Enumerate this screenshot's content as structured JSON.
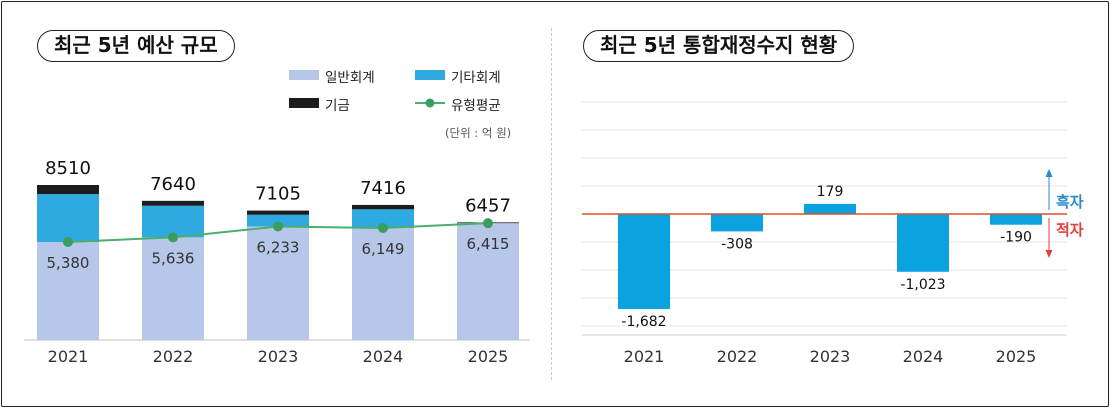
{
  "left_panel": {
    "title": "최근 5년 예산 규모",
    "legend": [
      {
        "key": "general",
        "label": "일반회계",
        "color": "#b7c7ea",
        "shape": "bar"
      },
      {
        "key": "special",
        "label": "기타회계",
        "color": "#2eaae0",
        "shape": "bar"
      },
      {
        "key": "fund",
        "label": "기금",
        "color": "#1c1c1c",
        "shape": "bar"
      },
      {
        "key": "avg",
        "label": "유형평균",
        "color": "#4aaf6e",
        "shape": "line-dot"
      }
    ],
    "unit": "(단위 : 억 원)"
  },
  "right_panel": {
    "title": "최근 5년 통합재정수지 현황",
    "surplus_label": "흑자",
    "deficit_label": "적자",
    "surplus_color": "#2a8bcc",
    "deficit_color": "#e2403a"
  },
  "chart_data": [
    {
      "type": "bar",
      "stacked": true,
      "categories": [
        "2021",
        "2022",
        "2023",
        "2024",
        "2025"
      ],
      "totals": [
        8510,
        7640,
        7105,
        7416,
        6457
      ],
      "total_labels": [
        "8510",
        "7640",
        "7105",
        "7416",
        "6457"
      ],
      "series": [
        {
          "name": "일반회계",
          "values": [
            5380,
            5636,
            6233,
            6149,
            6415
          ],
          "color": "#b7c7ea"
        },
        {
          "name": "기타회계",
          "values": [
            2630,
            1734,
            642,
            1027,
            0
          ],
          "color": "#2eaae0"
        },
        {
          "name": "기금",
          "values": [
            500,
            270,
            230,
            240,
            42
          ],
          "color": "#1c1c1c"
        }
      ],
      "line": {
        "name": "유형평균",
        "values": [
          5380,
          5636,
          6233,
          6149,
          6415
        ],
        "labels": [
          "5,380",
          "5,636",
          "6,233",
          "6,149",
          "6,415"
        ],
        "color": "#4aaf6e"
      },
      "ylim": [
        0,
        9500
      ]
    },
    {
      "type": "bar",
      "categories": [
        "2021",
        "2022",
        "2023",
        "2024",
        "2025"
      ],
      "values": [
        -1682,
        -308,
        179,
        -1023,
        -190
      ],
      "labels": [
        "-1,682",
        "-308",
        "179",
        "-1,023",
        "-190"
      ],
      "color": "#0aa3df",
      "zero_line_color": "#d9542c",
      "ylim": [
        -2200,
        2200
      ],
      "grid": true
    }
  ]
}
